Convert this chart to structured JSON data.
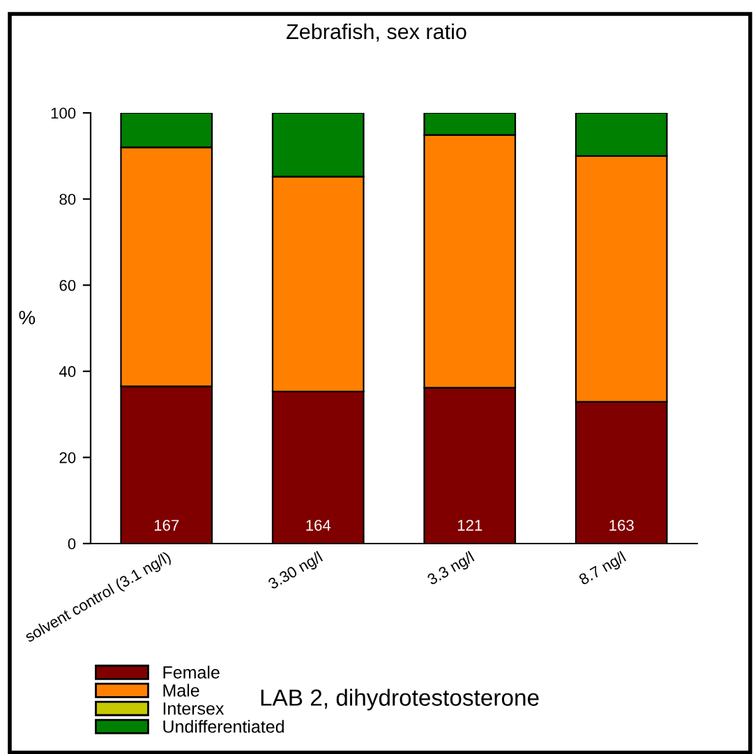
{
  "chart_data": {
    "type": "bar",
    "stacked": true,
    "title": "Zebrafish, sex ratio",
    "ylabel": "%",
    "categories": [
      "solvent control (3.1 ng/l)",
      "3.30 ng/l",
      "3.3 ng/l",
      "8.7 ng/l"
    ],
    "series": [
      {
        "name": "Female",
        "color": "#800000",
        "values": [
          36.5,
          35.3,
          36.2,
          32.9
        ]
      },
      {
        "name": "Male",
        "color": "#ff8000",
        "values": [
          55.5,
          49.9,
          58.7,
          57.1
        ]
      },
      {
        "name": "Intersex",
        "color": "#c8c800",
        "values": [
          0,
          0,
          0,
          0
        ]
      },
      {
        "name": "Undifferentiated",
        "color": "#008000",
        "values": [
          8.0,
          14.8,
          5.1,
          10.0
        ]
      }
    ],
    "ylim": [
      0,
      100
    ],
    "yticks": [
      0,
      20,
      40,
      60,
      80,
      100
    ],
    "grid": false,
    "legend": "bottom left",
    "annotations": [
      "167",
      "164",
      "121",
      "163",
      "LAB 2, dihydrotestosterone"
    ]
  }
}
